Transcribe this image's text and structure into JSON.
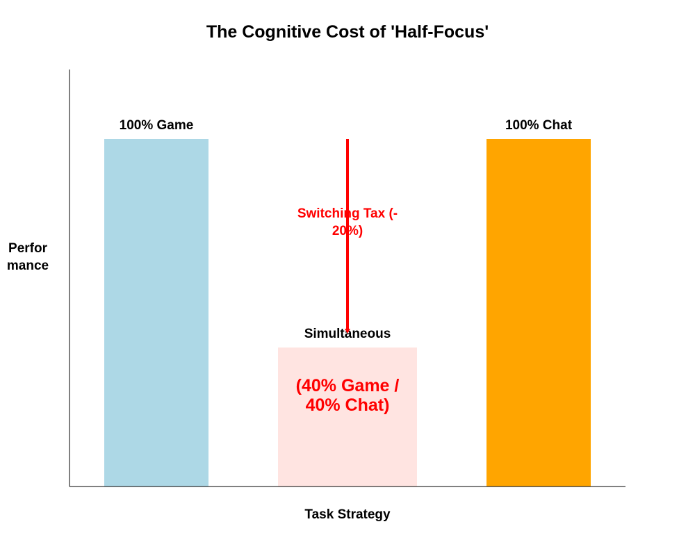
{
  "chart_data": {
    "type": "bar",
    "title": "The Cognitive Cost of 'Half-Focus'",
    "xlabel": "Task Strategy",
    "ylabel_lines": [
      "Perfor",
      "mance"
    ],
    "ylim": [
      0,
      120
    ],
    "show_ticks": false,
    "grid": false,
    "bars": [
      {
        "label": "100% Game",
        "value": 100,
        "color": "#add8e6"
      },
      {
        "label": "Simultaneous",
        "value": 40,
        "color": "#ffe4e1"
      },
      {
        "label": "100% Chat",
        "value": 100,
        "color": "#ffa500"
      }
    ],
    "inner_annotation": {
      "lines": [
        "(40% Game /",
        "40% Chat)"
      ],
      "color": "#ff0000",
      "bar_index": 1
    },
    "arrow": {
      "from_value": 100,
      "to_value": 44,
      "bar_index": 1,
      "color": "#ff0000",
      "text_lines": [
        "Switching Tax (-",
        "20%)"
      ]
    }
  }
}
